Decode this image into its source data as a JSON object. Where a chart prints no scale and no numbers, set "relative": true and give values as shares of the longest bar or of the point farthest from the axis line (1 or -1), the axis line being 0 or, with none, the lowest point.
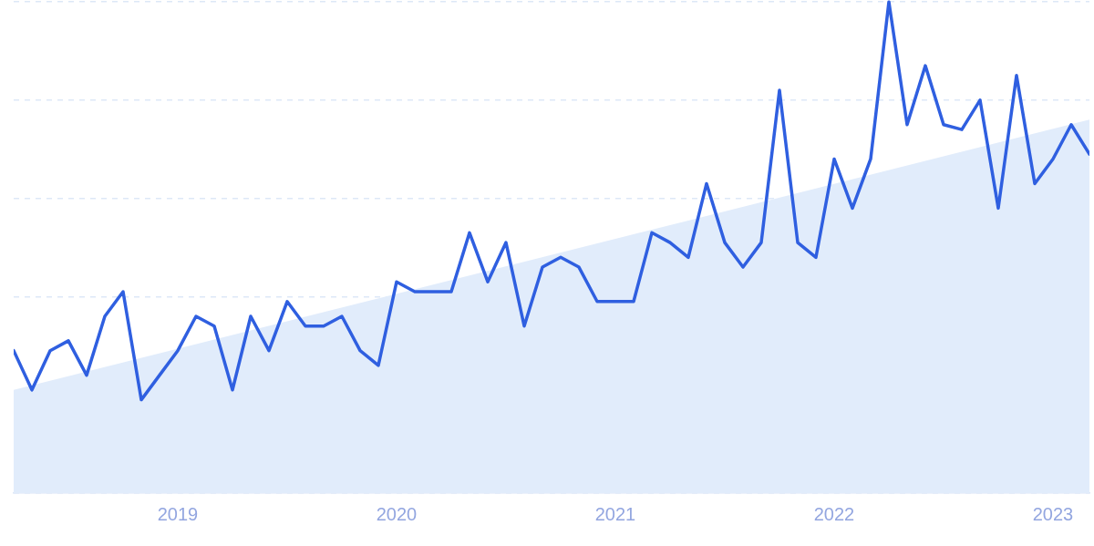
{
  "chart_data": {
    "type": "line",
    "relative": true,
    "grid": "y",
    "marker": "none",
    "line_style": "solid",
    "legend": false,
    "xlim": [
      "2018-04",
      "2023-03"
    ],
    "xticks": [
      "2019",
      "2020",
      "2021",
      "2022",
      "2023"
    ],
    "x": [
      "2018-04",
      "2018-05",
      "2018-06",
      "2018-07",
      "2018-08",
      "2018-09",
      "2018-10",
      "2018-11",
      "2018-12",
      "2019-01",
      "2019-02",
      "2019-03",
      "2019-04",
      "2019-05",
      "2019-06",
      "2019-07",
      "2019-08",
      "2019-09",
      "2019-10",
      "2019-11",
      "2019-12",
      "2020-01",
      "2020-02",
      "2020-03",
      "2020-04",
      "2020-05",
      "2020-06",
      "2020-07",
      "2020-08",
      "2020-09",
      "2020-10",
      "2020-11",
      "2020-12",
      "2021-01",
      "2021-02",
      "2021-03",
      "2021-04",
      "2021-05",
      "2021-06",
      "2021-07",
      "2021-08",
      "2021-09",
      "2021-10",
      "2021-11",
      "2021-12",
      "2022-01",
      "2022-02",
      "2022-03",
      "2022-04",
      "2022-05",
      "2022-06",
      "2022-07",
      "2022-08",
      "2022-09",
      "2022-10",
      "2022-11",
      "2022-12",
      "2023-01",
      "2023-02",
      "2023-03"
    ],
    "series": [
      {
        "type": "area",
        "color": "#e1ecfb",
        "x": [
          "2018-04",
          "2023-03"
        ],
        "values": [
          0.21,
          0.76
        ]
      },
      {
        "color": "#2f5fe0",
        "values": [
          0.29,
          0.21,
          0.29,
          0.31,
          0.24,
          0.36,
          0.41,
          0.19,
          0.24,
          0.29,
          0.36,
          0.34,
          0.21,
          0.36,
          0.29,
          0.39,
          0.34,
          0.34,
          0.36,
          0.29,
          0.26,
          0.43,
          0.41,
          0.41,
          0.41,
          0.53,
          0.43,
          0.51,
          0.34,
          0.46,
          0.48,
          0.46,
          0.39,
          0.39,
          0.39,
          0.53,
          0.51,
          0.48,
          0.63,
          0.51,
          0.46,
          0.51,
          0.82,
          0.51,
          0.48,
          0.68,
          0.58,
          0.68,
          1,
          0.75,
          0.87,
          0.75,
          0.74,
          0.8,
          0.58,
          0.85,
          0.63,
          0.68,
          0.75,
          0.69
        ]
      }
    ]
  }
}
